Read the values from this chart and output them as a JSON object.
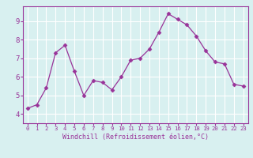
{
  "x": [
    0,
    1,
    2,
    3,
    4,
    5,
    6,
    7,
    8,
    9,
    10,
    11,
    12,
    13,
    14,
    15,
    16,
    17,
    18,
    19,
    20,
    21,
    22,
    23
  ],
  "y": [
    4.3,
    4.5,
    5.4,
    7.3,
    7.7,
    6.3,
    5.0,
    5.8,
    5.7,
    5.3,
    6.0,
    6.9,
    7.0,
    7.5,
    8.4,
    9.4,
    9.1,
    8.8,
    8.2,
    7.4,
    6.8,
    6.7,
    5.6,
    5.5
  ],
  "line_color": "#993399",
  "marker": "D",
  "marker_size": 2.5,
  "bg_color": "#d8f0f0",
  "grid_color": "#ffffff",
  "xlabel": "Windchill (Refroidissement éolien,°C)",
  "xlabel_color": "#993399",
  "tick_color": "#993399",
  "spine_color": "#993399",
  "xlim": [
    -0.5,
    23.5
  ],
  "ylim": [
    3.5,
    9.8
  ],
  "yticks": [
    4,
    5,
    6,
    7,
    8,
    9
  ],
  "xticks": [
    0,
    1,
    2,
    3,
    4,
    5,
    6,
    7,
    8,
    9,
    10,
    11,
    12,
    13,
    14,
    15,
    16,
    17,
    18,
    19,
    20,
    21,
    22,
    23
  ],
  "xtick_labels": [
    "0",
    "1",
    "2",
    "3",
    "4",
    "5",
    "6",
    "7",
    "8",
    "9",
    "10",
    "11",
    "12",
    "13",
    "14",
    "15",
    "16",
    "17",
    "18",
    "19",
    "20",
    "21",
    "22",
    "23"
  ],
  "xlabel_fontsize": 6.0,
  "xtick_fontsize": 5.2,
  "ytick_fontsize": 6.5
}
